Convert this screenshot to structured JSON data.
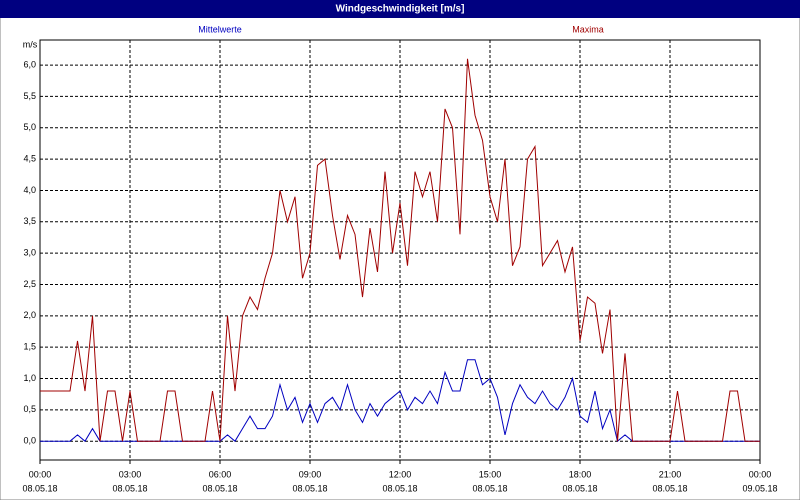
{
  "chart_data": {
    "type": "line",
    "title": "Windgeschwindigkeit [m/s]",
    "y_label": "m/s",
    "x": [
      0,
      0.25,
      0.5,
      0.75,
      1,
      1.25,
      1.5,
      1.75,
      2,
      2.25,
      2.5,
      2.75,
      3,
      3.25,
      3.5,
      3.75,
      4,
      4.25,
      4.5,
      4.75,
      5,
      5.25,
      5.5,
      5.75,
      6,
      6.25,
      6.5,
      6.75,
      7,
      7.25,
      7.5,
      7.75,
      8,
      8.25,
      8.5,
      8.75,
      9,
      9.25,
      9.5,
      9.75,
      10,
      10.25,
      10.5,
      10.75,
      11,
      11.25,
      11.5,
      11.75,
      12,
      12.25,
      12.5,
      12.75,
      13,
      13.25,
      13.5,
      13.75,
      14,
      14.25,
      14.5,
      14.75,
      15,
      15.25,
      15.5,
      15.75,
      16,
      16.25,
      16.5,
      16.75,
      17,
      17.25,
      17.5,
      17.75,
      18,
      18.25,
      18.5,
      18.75,
      19,
      19.25,
      19.5,
      19.75,
      20,
      20.25,
      20.5,
      20.75,
      21,
      21.25,
      21.5,
      21.75,
      22,
      22.25,
      22.5,
      22.75,
      23,
      23.25,
      23.5,
      23.75,
      24
    ],
    "series": [
      {
        "name": "Mittelwerte",
        "color": "#0000c0",
        "values": [
          0,
          0,
          0,
          0,
          0,
          0.1,
          0,
          0.2,
          0,
          0,
          0,
          0,
          0,
          0,
          0,
          0,
          0,
          0,
          0,
          0,
          0,
          0,
          0,
          0,
          0,
          0.1,
          0,
          0.2,
          0.4,
          0.2,
          0.2,
          0.4,
          0.9,
          0.5,
          0.7,
          0.3,
          0.6,
          0.3,
          0.6,
          0.7,
          0.5,
          0.9,
          0.5,
          0.3,
          0.6,
          0.4,
          0.6,
          0.7,
          0.8,
          0.5,
          0.7,
          0.6,
          0.8,
          0.6,
          1.1,
          0.8,
          0.8,
          1.3,
          1.3,
          0.9,
          1.0,
          0.7,
          0.1,
          0.6,
          0.9,
          0.7,
          0.6,
          0.8,
          0.6,
          0.5,
          0.7,
          1.0,
          0.4,
          0.3,
          0.8,
          0.2,
          0.5,
          0,
          0.1,
          0,
          0,
          0,
          0,
          0,
          0,
          0,
          0,
          0,
          0,
          0,
          0,
          0,
          0,
          0,
          0,
          0,
          0
        ]
      },
      {
        "name": "Maxima",
        "color": "#a00000",
        "values": [
          0.8,
          0.8,
          0.8,
          0.8,
          0.8,
          1.6,
          0.8,
          2.0,
          0,
          0.8,
          0.8,
          0,
          0.8,
          0,
          0,
          0,
          0,
          0.8,
          0.8,
          0,
          0,
          0,
          0,
          0.8,
          0,
          2.0,
          0.8,
          2.0,
          2.3,
          2.1,
          2.6,
          3.0,
          4.0,
          3.5,
          3.9,
          2.6,
          3.0,
          4.4,
          4.5,
          3.6,
          2.9,
          3.6,
          3.3,
          2.3,
          3.4,
          2.7,
          4.3,
          3.0,
          3.8,
          2.8,
          4.3,
          3.9,
          4.3,
          3.5,
          5.3,
          5.0,
          3.3,
          6.1,
          5.2,
          4.8,
          3.9,
          3.5,
          4.5,
          2.8,
          3.1,
          4.5,
          4.7,
          2.8,
          3.0,
          3.2,
          2.7,
          3.1,
          1.6,
          2.3,
          2.2,
          1.4,
          2.1,
          0,
          1.4,
          0,
          0,
          0,
          0,
          0,
          0,
          0.8,
          0,
          0,
          0,
          0,
          0,
          0,
          0.8,
          0.8,
          0,
          0,
          0
        ]
      }
    ],
    "xlim": [
      0,
      24
    ],
    "xticks": [
      {
        "value": 0,
        "label": "00:00",
        "date": "08.05.18"
      },
      {
        "value": 3,
        "label": "03:00",
        "date": "08.05.18"
      },
      {
        "value": 6,
        "label": "06:00",
        "date": "08.05.18"
      },
      {
        "value": 9,
        "label": "09:00",
        "date": "08.05.18"
      },
      {
        "value": 12,
        "label": "12:00",
        "date": "08.05.18"
      },
      {
        "value": 15,
        "label": "15:00",
        "date": "08.05.18"
      },
      {
        "value": 18,
        "label": "18:00",
        "date": "08.05.18"
      },
      {
        "value": 21,
        "label": "21:00",
        "date": "08.05.18"
      },
      {
        "value": 24,
        "label": "00:00",
        "date": "09.05.18"
      }
    ],
    "ylim": [
      -0.3,
      6.4
    ],
    "yticks": [
      {
        "value": 0,
        "label": "0,0"
      },
      {
        "value": 0.5,
        "label": "0,5"
      },
      {
        "value": 1,
        "label": "1,0"
      },
      {
        "value": 1.5,
        "label": "1,5"
      },
      {
        "value": 2,
        "label": "2,0"
      },
      {
        "value": 2.5,
        "label": "2,5"
      },
      {
        "value": 3,
        "label": "3,0"
      },
      {
        "value": 3.5,
        "label": "3,5"
      },
      {
        "value": 4,
        "label": "4,0"
      },
      {
        "value": 4.5,
        "label": "4,5"
      },
      {
        "value": 5,
        "label": "5,0"
      },
      {
        "value": 5.5,
        "label": "5,5"
      },
      {
        "value": 6,
        "label": "6,0"
      }
    ],
    "grid": true
  }
}
